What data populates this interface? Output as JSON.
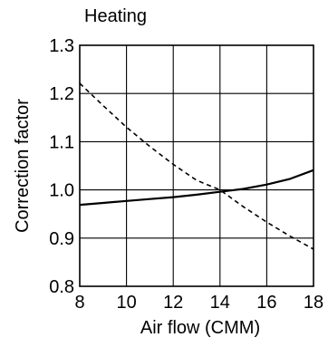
{
  "chart_data": {
    "type": "line",
    "title": "Heating",
    "xlabel": "Air flow (CMM)",
    "ylabel": "Correction factor",
    "xlim": [
      8,
      18
    ],
    "ylim": [
      0.8,
      1.3
    ],
    "xticks": [
      8,
      10,
      12,
      14,
      16,
      18
    ],
    "yticks": [
      0.8,
      0.9,
      1.0,
      1.1,
      1.2,
      1.3
    ],
    "xtick_labels": [
      "8",
      "10",
      "12",
      "14",
      "16",
      "18"
    ],
    "ytick_labels": [
      "0.8",
      "0.9",
      "1.0",
      "1.1",
      "1.2",
      "1.3"
    ],
    "grid": true,
    "series": [
      {
        "style": "solid",
        "x": [
          8,
          9,
          10,
          11,
          12,
          13,
          14,
          15,
          16,
          17,
          18
        ],
        "y": [
          0.969,
          0.973,
          0.977,
          0.981,
          0.985,
          0.99,
          0.996,
          1.002,
          1.011,
          1.023,
          1.041
        ]
      },
      {
        "style": "dashed",
        "x": [
          8,
          9,
          10,
          11,
          12,
          13,
          14,
          15,
          16,
          17,
          18
        ],
        "y": [
          1.221,
          1.175,
          1.13,
          1.09,
          1.053,
          1.02,
          1.0,
          0.965,
          0.933,
          0.904,
          0.877
        ]
      }
    ]
  }
}
